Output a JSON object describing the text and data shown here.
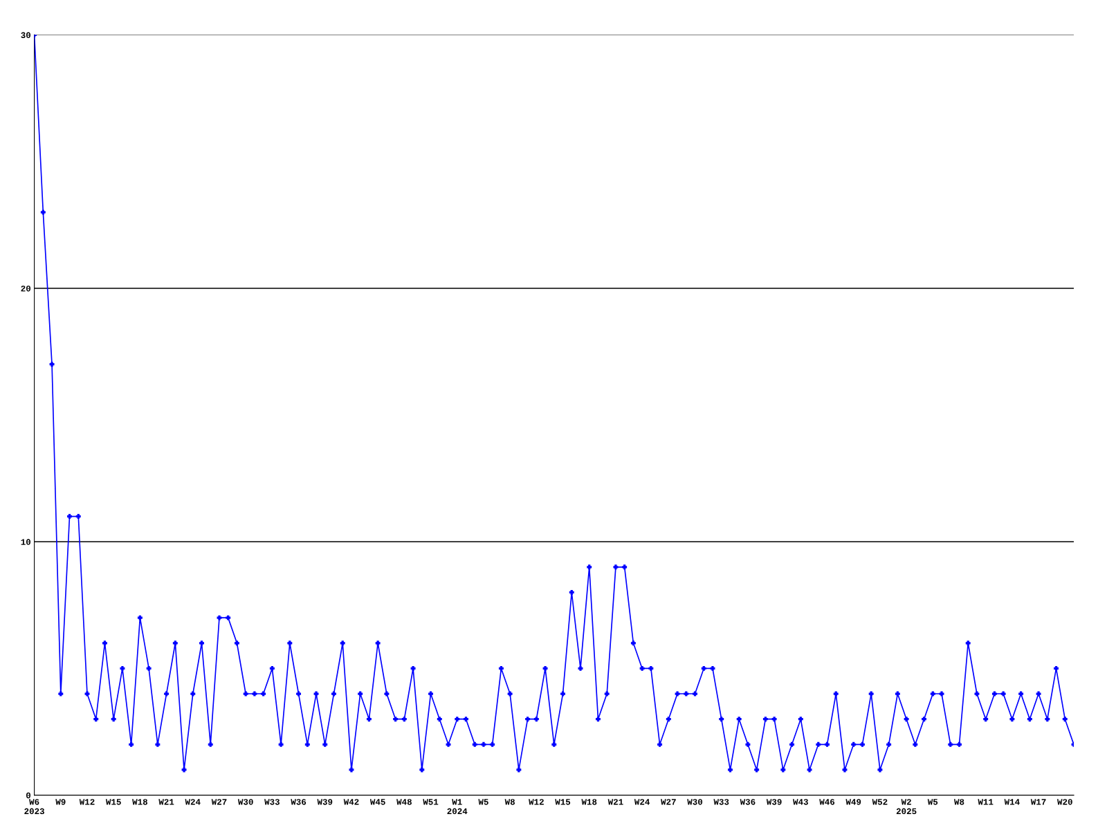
{
  "chart_data": {
    "type": "line",
    "categories": [
      "W6\n2023",
      null,
      null,
      "W9",
      null,
      null,
      "W12",
      null,
      null,
      "W15",
      null,
      null,
      "W18",
      null,
      null,
      "W21",
      null,
      null,
      "W24",
      null,
      null,
      "W27",
      null,
      null,
      "W30",
      null,
      null,
      "W33",
      null,
      null,
      "W36",
      null,
      null,
      "W39",
      null,
      null,
      "W42",
      null,
      null,
      "W45",
      null,
      null,
      "W48",
      null,
      null,
      "W51",
      null,
      null,
      "W1\n2024",
      null,
      null,
      "W5",
      null,
      null,
      "W8",
      null,
      null,
      "W12",
      null,
      null,
      "W15",
      null,
      null,
      "W18",
      null,
      null,
      "W21",
      null,
      null,
      "W24",
      null,
      null,
      "W27",
      null,
      null,
      "W30",
      null,
      null,
      "W33",
      null,
      null,
      "W36",
      null,
      null,
      "W39",
      null,
      null,
      "W43",
      null,
      null,
      "W46",
      null,
      null,
      "W49",
      null,
      null,
      "W52",
      null,
      null,
      "W2\n2025",
      null,
      null,
      "W5",
      null,
      null,
      "W8",
      null,
      null,
      "W11",
      null,
      null,
      "W14",
      null,
      null,
      "W17",
      null,
      null,
      "W20",
      null
    ],
    "series": [
      {
        "color": "#0000ff",
        "values": [
          30,
          23,
          17,
          4,
          11,
          11,
          4,
          3,
          6,
          3,
          5,
          2,
          7,
          5,
          2,
          4,
          6,
          1,
          4,
          6,
          2,
          7,
          7,
          6,
          4,
          4,
          4,
          5,
          2,
          6,
          4,
          2,
          4,
          2,
          4,
          6,
          1,
          4,
          3,
          6,
          4,
          3,
          3,
          5,
          1,
          4,
          3,
          2,
          3,
          3,
          2,
          2,
          2,
          5,
          4,
          1,
          3,
          3,
          5,
          2,
          4,
          8,
          5,
          9,
          3,
          4,
          9,
          9,
          6,
          5,
          5,
          2,
          3,
          4,
          4,
          4,
          5,
          5,
          3,
          1,
          3,
          2,
          1,
          3,
          3,
          1,
          2,
          3,
          1,
          2,
          2,
          4,
          1,
          2,
          2,
          4,
          1,
          2,
          4,
          3,
          2,
          3,
          4,
          4,
          2,
          2,
          6,
          4,
          3,
          4,
          4,
          3,
          4,
          3,
          4,
          3,
          5,
          3,
          2
        ]
      }
    ],
    "ylim": [
      0,
      30
    ],
    "yticks": [
      0,
      10,
      20,
      30
    ],
    "grid": "y",
    "marker": "cross",
    "line_style": "solid"
  }
}
